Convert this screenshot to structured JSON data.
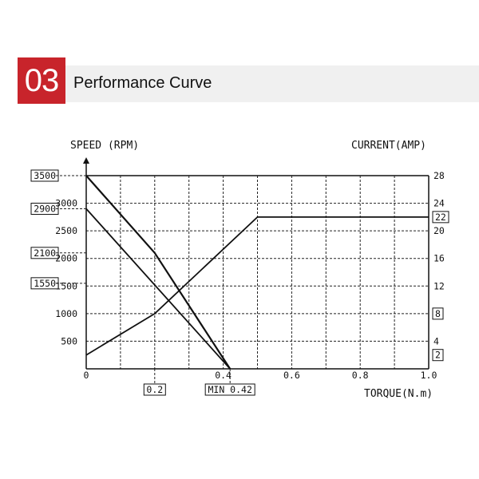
{
  "header": {
    "number": "03",
    "title": "Performance Curve",
    "accent_color": "#c8242b",
    "bar_color": "#f0f0f0"
  },
  "chart_data": {
    "type": "line",
    "grid": true,
    "xlabel": "TORQUE(N.m)",
    "ylabel_left": "SPEED (RPM)",
    "ylabel_right": "CURRENT(AMP)",
    "xlim": [
      0,
      1.0
    ],
    "ylim_left": [
      0,
      3500
    ],
    "ylim_right": [
      0,
      28
    ],
    "x_ticks": [
      {
        "v": 0,
        "label": "0"
      },
      {
        "v": 0.4,
        "label": "0.4"
      },
      {
        "v": 0.6,
        "label": "0.6"
      },
      {
        "v": 0.8,
        "label": "0.8"
      },
      {
        "v": 1.0,
        "label": "1.0"
      }
    ],
    "left_ticks": [
      {
        "v": 500,
        "label": "500"
      },
      {
        "v": 1000,
        "label": "1000"
      },
      {
        "v": 1500,
        "label": "1500"
      },
      {
        "v": 2000,
        "label": "2000"
      },
      {
        "v": 2500,
        "label": "2500"
      },
      {
        "v": 3000,
        "label": "3000"
      }
    ],
    "right_ticks": [
      {
        "v": 4,
        "label": "4"
      },
      {
        "v": 12,
        "label": "12"
      },
      {
        "v": 16,
        "label": "16"
      },
      {
        "v": 20,
        "label": "20"
      },
      {
        "v": 24,
        "label": "24"
      },
      {
        "v": 28,
        "label": "28"
      }
    ],
    "boxed_left": [
      {
        "v": 3500,
        "label": "3500"
      },
      {
        "v": 2900,
        "label": "2900"
      },
      {
        "v": 2100,
        "label": "2100"
      },
      {
        "v": 1550,
        "label": "1550"
      }
    ],
    "boxed_right": [
      {
        "v": 22,
        "label": "22"
      },
      {
        "v": 8,
        "label": "8"
      },
      {
        "v": 2,
        "label": "2"
      }
    ],
    "boxed_x": [
      {
        "v": 0.2,
        "label": "0.2"
      },
      {
        "v": 0.42,
        "label": "MIN 0.42"
      }
    ],
    "series": [
      {
        "axis": "left",
        "x": [
          0,
          0.2,
          0.42
        ],
        "y": [
          3500,
          2100,
          0
        ],
        "width": 2.2
      },
      {
        "axis": "left",
        "x": [
          0,
          0.42
        ],
        "y": [
          2900,
          0
        ],
        "width": 1.8
      },
      {
        "axis": "right",
        "x": [
          0,
          0.2,
          0.5,
          1.0
        ],
        "y": [
          2,
          8,
          22,
          22
        ],
        "width": 1.8
      }
    ]
  }
}
